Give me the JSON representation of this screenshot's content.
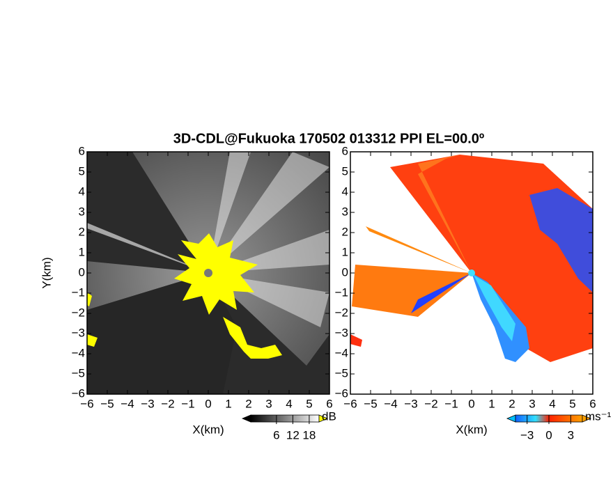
{
  "title": "3D-CDL@Fukuoka 170502 013312 PPI EL=00.0º",
  "chart_data": [
    {
      "type": "ppi",
      "ylabel": "Y(km)",
      "xlabel": "X(km)",
      "xlim": [
        -6,
        6
      ],
      "ylim": [
        -6,
        6
      ],
      "xticks": [
        {
          "value": -6,
          "label": "−6"
        },
        {
          "value": -5,
          "label": "−5"
        },
        {
          "value": -4,
          "label": "−4"
        },
        {
          "value": -3,
          "label": "−3"
        },
        {
          "value": -2,
          "label": "−2"
        },
        {
          "value": -1,
          "label": "−1"
        },
        0,
        1,
        2,
        3,
        4,
        5,
        6
      ],
      "yticks": [
        {
          "value": -6,
          "label": "−6"
        },
        {
          "value": -5,
          "label": "−5"
        },
        {
          "value": -4,
          "label": "−4"
        },
        {
          "value": -3,
          "label": "−3"
        },
        {
          "value": -2,
          "label": "−2"
        },
        {
          "value": -1,
          "label": "−1"
        },
        0,
        1,
        2,
        3,
        4,
        5,
        6
      ],
      "colorbar": {
        "clim": [
          -3.4,
          21.6
        ],
        "ticks": [
          6,
          12,
          18
        ],
        "unit": "dB"
      }
    },
    {
      "type": "ppi",
      "xlabel": "X(km)",
      "xlim": [
        -6,
        6
      ],
      "ylim": [
        -6,
        6
      ],
      "xticks": [
        {
          "value": -6,
          "label": "−6"
        },
        {
          "value": -5,
          "label": "−5"
        },
        {
          "value": -4,
          "label": "−4"
        },
        {
          "value": -3,
          "label": "−3"
        },
        {
          "value": -2,
          "label": "−2"
        },
        {
          "value": -1,
          "label": "−1"
        },
        0,
        1,
        2,
        3,
        4,
        5,
        6
      ],
      "yticks": [
        {
          "value": -6,
          "label": "−6"
        },
        {
          "value": -5,
          "label": "−5"
        },
        {
          "value": -4,
          "label": "−4"
        },
        {
          "value": -3,
          "label": "−3"
        },
        {
          "value": -2,
          "label": "−2"
        },
        {
          "value": -1,
          "label": "−1"
        },
        0,
        1,
        2,
        3,
        4,
        5,
        6
      ],
      "colorbar": {
        "clim": [
          -4.6,
          4.6
        ],
        "ticks": [
          {
            "value": -3,
            "label": "−3"
          },
          0,
          3
        ],
        "unit": "ms⁻¹"
      }
    }
  ]
}
